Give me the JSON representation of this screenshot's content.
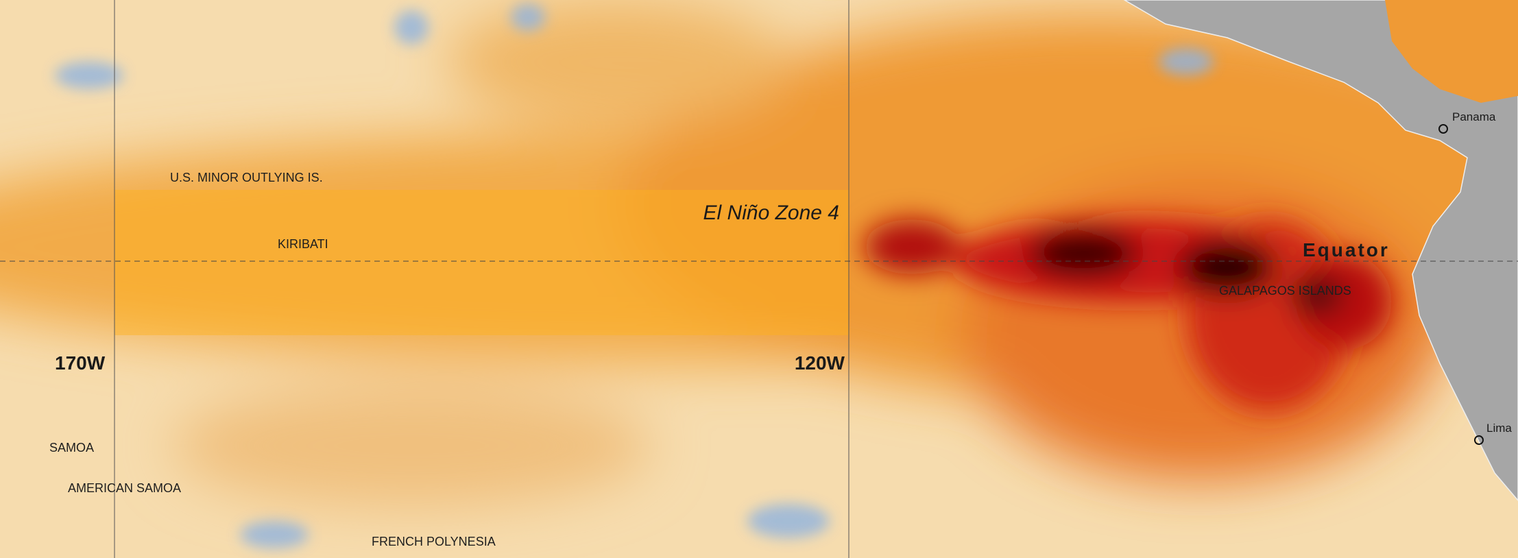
{
  "labels": {
    "us_minor_outlying": "U.S. MINOR OUTLYING IS.",
    "kiribati": "KIRIBATI",
    "zone": "El Niño Zone 4",
    "equator": "Equator",
    "galapagos": "GALAPAGOS ISLANDS",
    "panama": "Panama",
    "lima": "Lima",
    "lon_170w": "170W",
    "lon_120w": "120W",
    "samoa": "SAMOA",
    "american_samoa": "AMERICAN SAMOA",
    "french_polynesia": "FRENCH POLYNESIA"
  }
}
